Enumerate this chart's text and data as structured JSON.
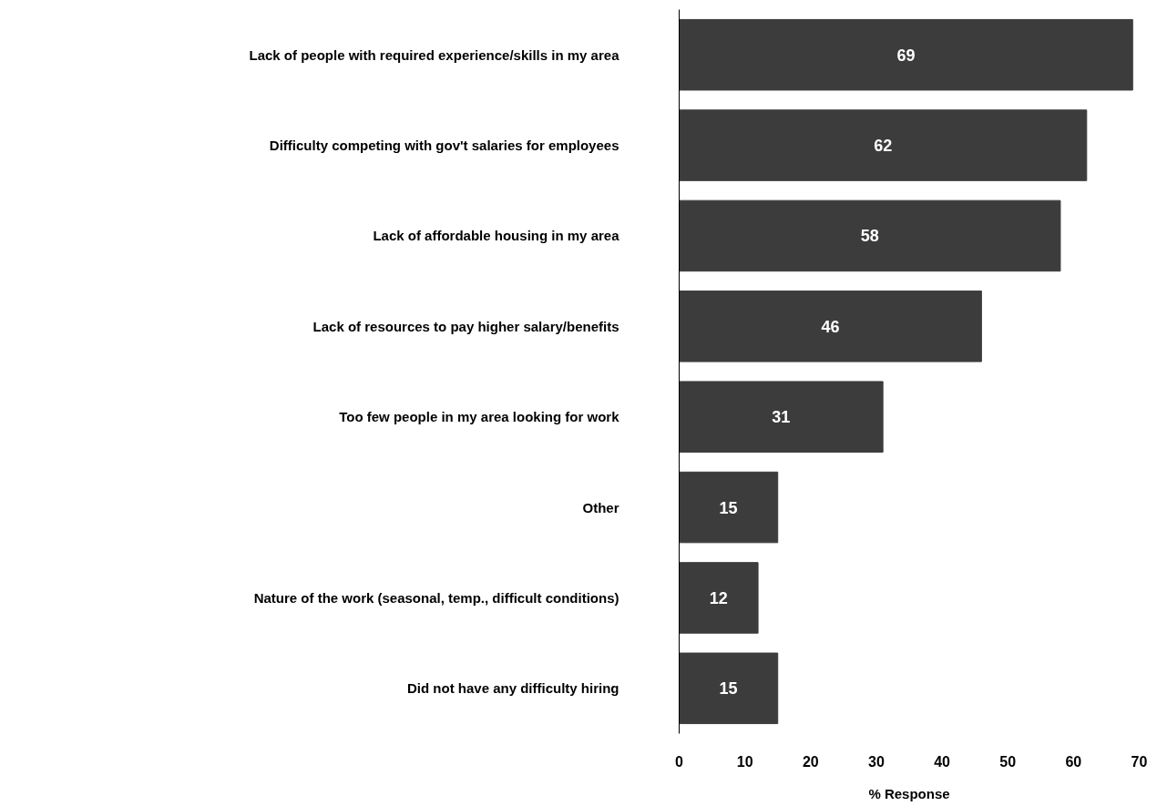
{
  "chart_data": {
    "type": "bar",
    "orientation": "horizontal",
    "xlabel": "% Response",
    "categories": [
      "Lack of people with required experience/skills in my area",
      "Difficulty competing with gov't salaries for employees",
      "Lack of affordable housing in my area",
      "Lack of resources to pay higher salary/benefits",
      "Too few people in my area looking for work",
      "Other",
      "Nature of the work (seasonal, temp., difficult conditions)",
      "Did not have any difficulty hiring"
    ],
    "values": [
      69,
      62,
      58,
      46,
      31,
      15,
      12,
      15
    ],
    "color": "#3c3c3c",
    "xlim": [
      0,
      70
    ],
    "xticks": [
      0,
      10,
      20,
      30,
      40,
      50,
      60,
      70
    ],
    "data_labels": true,
    "grid": false
  }
}
